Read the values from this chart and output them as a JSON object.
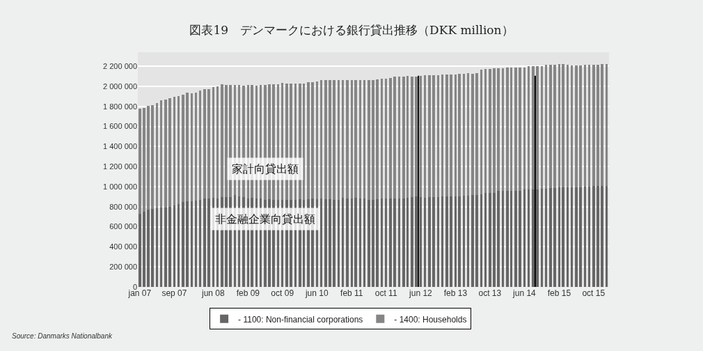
{
  "chart_data": {
    "type": "bar",
    "stacked": true,
    "title": "図表19　デンマークにおける銀行貸出推移（DKK million）",
    "x": [
      "2007-01",
      "2007-02",
      "2007-03",
      "2007-04",
      "2007-05",
      "2007-06",
      "2007-07",
      "2007-08",
      "2007-09",
      "2007-10",
      "2007-11",
      "2007-12",
      "2008-01",
      "2008-02",
      "2008-03",
      "2008-04",
      "2008-05",
      "2008-06",
      "2008-07",
      "2008-08",
      "2008-09",
      "2008-10",
      "2008-11",
      "2008-12",
      "2009-01",
      "2009-02",
      "2009-03",
      "2009-04",
      "2009-05",
      "2009-06",
      "2009-07",
      "2009-08",
      "2009-09",
      "2009-10",
      "2009-11",
      "2009-12",
      "2010-01",
      "2010-02",
      "2010-03",
      "2010-04",
      "2010-05",
      "2010-06",
      "2010-07",
      "2010-08",
      "2010-09",
      "2010-10",
      "2010-11",
      "2010-12",
      "2011-01",
      "2011-02",
      "2011-03",
      "2011-04",
      "2011-05",
      "2011-06",
      "2011-07",
      "2011-08",
      "2011-09",
      "2011-10",
      "2011-11",
      "2011-12",
      "2012-01",
      "2012-02",
      "2012-03",
      "2012-04",
      "2012-05",
      "2012-06",
      "2012-07",
      "2012-08",
      "2012-09",
      "2012-10",
      "2012-11",
      "2012-12",
      "2013-01",
      "2013-02",
      "2013-03",
      "2013-04",
      "2013-05",
      "2013-06",
      "2013-07",
      "2013-08",
      "2013-09",
      "2013-10",
      "2013-11",
      "2013-12",
      "2014-01",
      "2014-02",
      "2014-03",
      "2014-04",
      "2014-05",
      "2014-06",
      "2014-07",
      "2014-08",
      "2014-09",
      "2014-10",
      "2014-11",
      "2014-12",
      "2015-01",
      "2015-02",
      "2015-03",
      "2015-04",
      "2015-05",
      "2015-06",
      "2015-07",
      "2015-08",
      "2015-09",
      "2015-10",
      "2015-11",
      "2015-12",
      "2016-01"
    ],
    "series": [
      {
        "name": "- 1100: Non-financial corporations",
        "color": "#666666",
        "values": [
          730000,
          750000,
          770000,
          780000,
          785000,
          790000,
          790000,
          800000,
          815000,
          825000,
          845000,
          855000,
          855000,
          860000,
          870000,
          880000,
          885000,
          890000,
          880000,
          895000,
          895000,
          895000,
          915000,
          905000,
          895000,
          885000,
          890000,
          885000,
          885000,
          870000,
          875000,
          865000,
          870000,
          870000,
          870000,
          865000,
          870000,
          875000,
          870000,
          875000,
          880000,
          875000,
          880000,
          875000,
          875000,
          870000,
          870000,
          890000,
          880000,
          885000,
          890000,
          880000,
          880000,
          870000,
          870000,
          875000,
          880000,
          880000,
          880000,
          885000,
          880000,
          880000,
          890000,
          895000,
          900000,
          895000,
          890000,
          895000,
          895000,
          895000,
          900000,
          900000,
          905000,
          905000,
          905000,
          910000,
          910000,
          915000,
          915000,
          925000,
          935000,
          935000,
          940000,
          955000,
          955000,
          955000,
          955000,
          960000,
          960000,
          970000,
          970000,
          970000,
          975000,
          980000,
          980000,
          985000,
          985000,
          990000,
          990000,
          995000,
          995000,
          995000,
          995000,
          1000000,
          1000000,
          1005000,
          1005000,
          1005000,
          1005000
        ]
      },
      {
        "name": "- 1400: Households",
        "color": "#858585",
        "values": [
          1045000,
          1035000,
          1035000,
          1035000,
          1050000,
          1070000,
          1080000,
          1080000,
          1080000,
          1080000,
          1070000,
          1085000,
          1075000,
          1080000,
          1090000,
          1090000,
          1085000,
          1105000,
          1120000,
          1125000,
          1120000,
          1120000,
          1100000,
          1110000,
          1110000,
          1130000,
          1125000,
          1120000,
          1130000,
          1145000,
          1145000,
          1155000,
          1150000,
          1165000,
          1160000,
          1165000,
          1160000,
          1150000,
          1160000,
          1165000,
          1160000,
          1175000,
          1180000,
          1185000,
          1185000,
          1195000,
          1190000,
          1170000,
          1185000,
          1175000,
          1170000,
          1185000,
          1185000,
          1190000,
          1195000,
          1195000,
          1195000,
          1195000,
          1200000,
          1210000,
          1215000,
          1220000,
          1215000,
          1205000,
          1195000,
          1210000,
          1220000,
          1215000,
          1215000,
          1215000,
          1215000,
          1215000,
          1215000,
          1215000,
          1220000,
          1215000,
          1220000,
          1210000,
          1220000,
          1240000,
          1235000,
          1235000,
          1240000,
          1225000,
          1225000,
          1230000,
          1230000,
          1225000,
          1230000,
          1220000,
          1230000,
          1230000,
          1225000,
          1220000,
          1235000,
          1230000,
          1230000,
          1230000,
          1230000,
          1220000,
          1215000,
          1215000,
          1215000,
          1215000,
          1215000,
          1210000,
          1210000,
          1215000,
          1215000
        ]
      }
    ],
    "xlim": [
      "2006-12-18",
      "2016-01-18"
    ],
    "xticks": [
      {
        "value": "2007-01",
        "label": "jan 07"
      },
      {
        "value": "2007-09",
        "label": "sep 07"
      },
      {
        "value": "2008-06",
        "label": "jun 08"
      },
      {
        "value": "2009-02",
        "label": "feb 09"
      },
      {
        "value": "2009-10",
        "label": "oct 09"
      },
      {
        "value": "2010-06",
        "label": "jun 10"
      },
      {
        "value": "2011-02",
        "label": "feb 11"
      },
      {
        "value": "2011-10",
        "label": "oct 11"
      },
      {
        "value": "2012-06",
        "label": "jun 12"
      },
      {
        "value": "2013-02",
        "label": "feb 13"
      },
      {
        "value": "2013-10",
        "label": "oct 13"
      },
      {
        "value": "2014-06",
        "label": "jun 14"
      },
      {
        "value": "2015-02",
        "label": "feb 15"
      },
      {
        "value": "2015-10",
        "label": "oct 15"
      }
    ],
    "ylim": [
      0,
      2340000
    ],
    "yticks": [
      0,
      {
        "value": 200000,
        "label": "200 000"
      },
      {
        "value": 400000,
        "label": "400 000"
      },
      {
        "value": 600000,
        "label": "600 000"
      },
      {
        "value": 800000,
        "label": "800 000"
      },
      {
        "value": 1000000,
        "label": "1 000 000"
      },
      {
        "value": 1200000,
        "label": "1 200 000"
      },
      {
        "value": 1400000,
        "label": "1 400 000"
      },
      {
        "value": 1600000,
        "label": "1 600 000"
      },
      {
        "value": 1800000,
        "label": "1 800 000"
      },
      {
        "value": 2000000,
        "label": "2 000 000"
      },
      {
        "value": 2200000,
        "label": "2 200 000"
      }
    ],
    "grid": "y",
    "legend": "bottom",
    "ref_lines": [
      {
        "axis": "x",
        "value": "2012-05-16",
        "color": "#000000"
      },
      {
        "axis": "x",
        "value": "2014-08-16",
        "color": "#000000"
      }
    ],
    "annotations": [
      {
        "text": "家計向貸出額",
        "x": "2009-06",
        "y": 1180000
      },
      {
        "text": "非金融企業向貸出額",
        "x": "2009-06",
        "y": 680000
      },
      "Source: Danmarks Nationalbank"
    ]
  }
}
